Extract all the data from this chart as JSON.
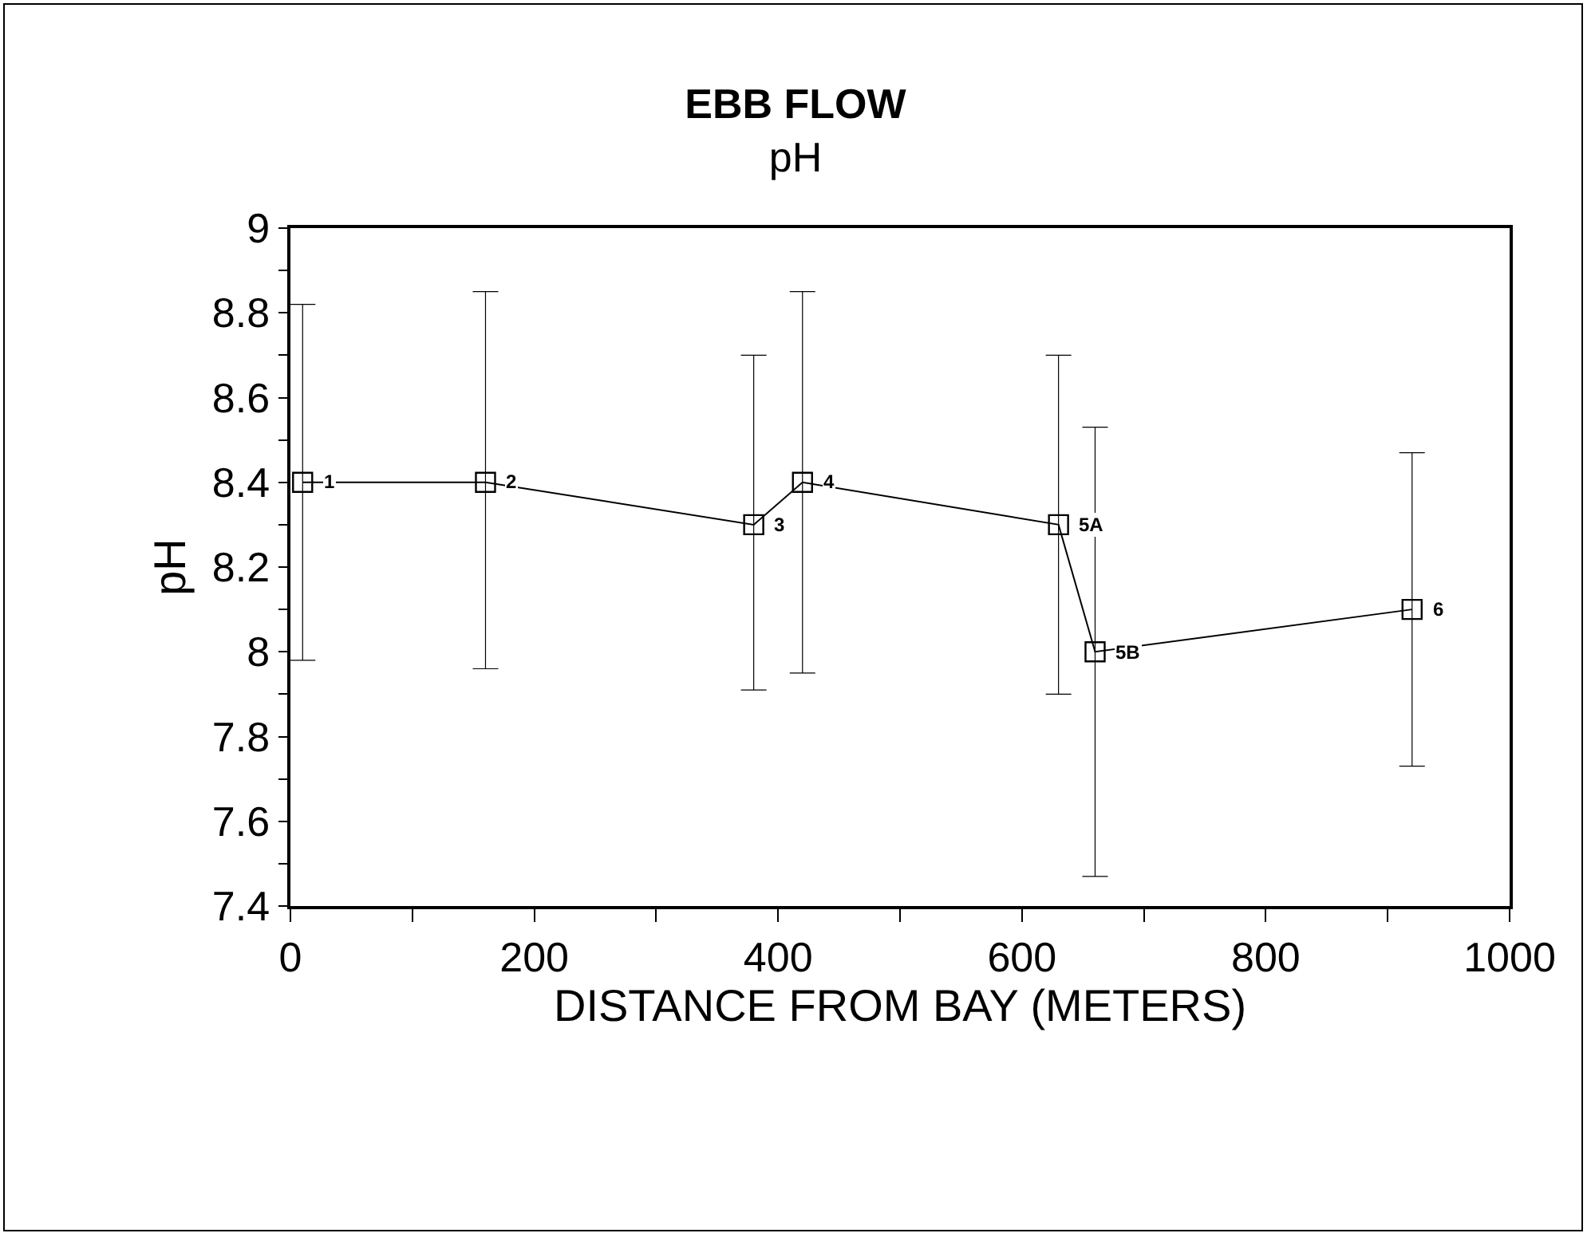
{
  "chart_data": {
    "type": "line",
    "title": "EBB FLOW",
    "subtitle": "pH",
    "xlabel": "DISTANCE FROM BAY (METERS)",
    "ylabel": "pH",
    "x": [
      10,
      160,
      380,
      420,
      630,
      660,
      920
    ],
    "series": [
      {
        "color": "#000000",
        "values": [
          8.4,
          8.4,
          8.3,
          8.4,
          8.3,
          8.0,
          8.1
        ],
        "errors": [
          [
            7.98,
            8.82
          ],
          [
            7.96,
            8.85
          ],
          [
            7.91,
            8.7
          ],
          [
            7.95,
            8.85
          ],
          [
            7.9,
            8.7
          ],
          [
            7.47,
            8.53
          ],
          [
            7.73,
            8.47
          ]
        ]
      }
    ],
    "annotations": [
      {
        "text": "1",
        "x": 10,
        "y": 8.4
      },
      {
        "text": "2",
        "x": 160,
        "y": 8.4
      },
      {
        "text": "3",
        "x": 380,
        "y": 8.3
      },
      {
        "text": "4",
        "x": 420,
        "y": 8.4
      },
      {
        "text": "5A",
        "x": 630,
        "y": 8.3
      },
      {
        "text": "5B",
        "x": 660,
        "y": 8.0
      },
      {
        "text": "6",
        "x": 920,
        "y": 8.1
      }
    ],
    "xlim": [
      0,
      1000
    ],
    "xticks": [
      0,
      {
        "value": 100,
        "label": null
      },
      200,
      {
        "value": 300,
        "label": null
      },
      400,
      {
        "value": 500,
        "label": null
      },
      600,
      {
        "value": 700,
        "label": null
      },
      800,
      {
        "value": 900,
        "label": null
      },
      1000
    ],
    "ylim": [
      7.4,
      9
    ],
    "yticks": [
      7.4,
      {
        "value": 7.5,
        "label": null
      },
      7.6,
      {
        "value": 7.7,
        "label": null
      },
      7.8,
      {
        "value": 7.9,
        "label": null
      },
      8,
      {
        "value": 8.1,
        "label": null
      },
      8.2,
      {
        "value": 8.3,
        "label": null
      },
      8.4,
      {
        "value": 8.5,
        "label": null
      },
      8.6,
      {
        "value": 8.7,
        "label": null
      },
      8.8,
      {
        "value": 8.9,
        "label": null
      },
      9
    ],
    "marker": "square",
    "line_style": "solid"
  }
}
